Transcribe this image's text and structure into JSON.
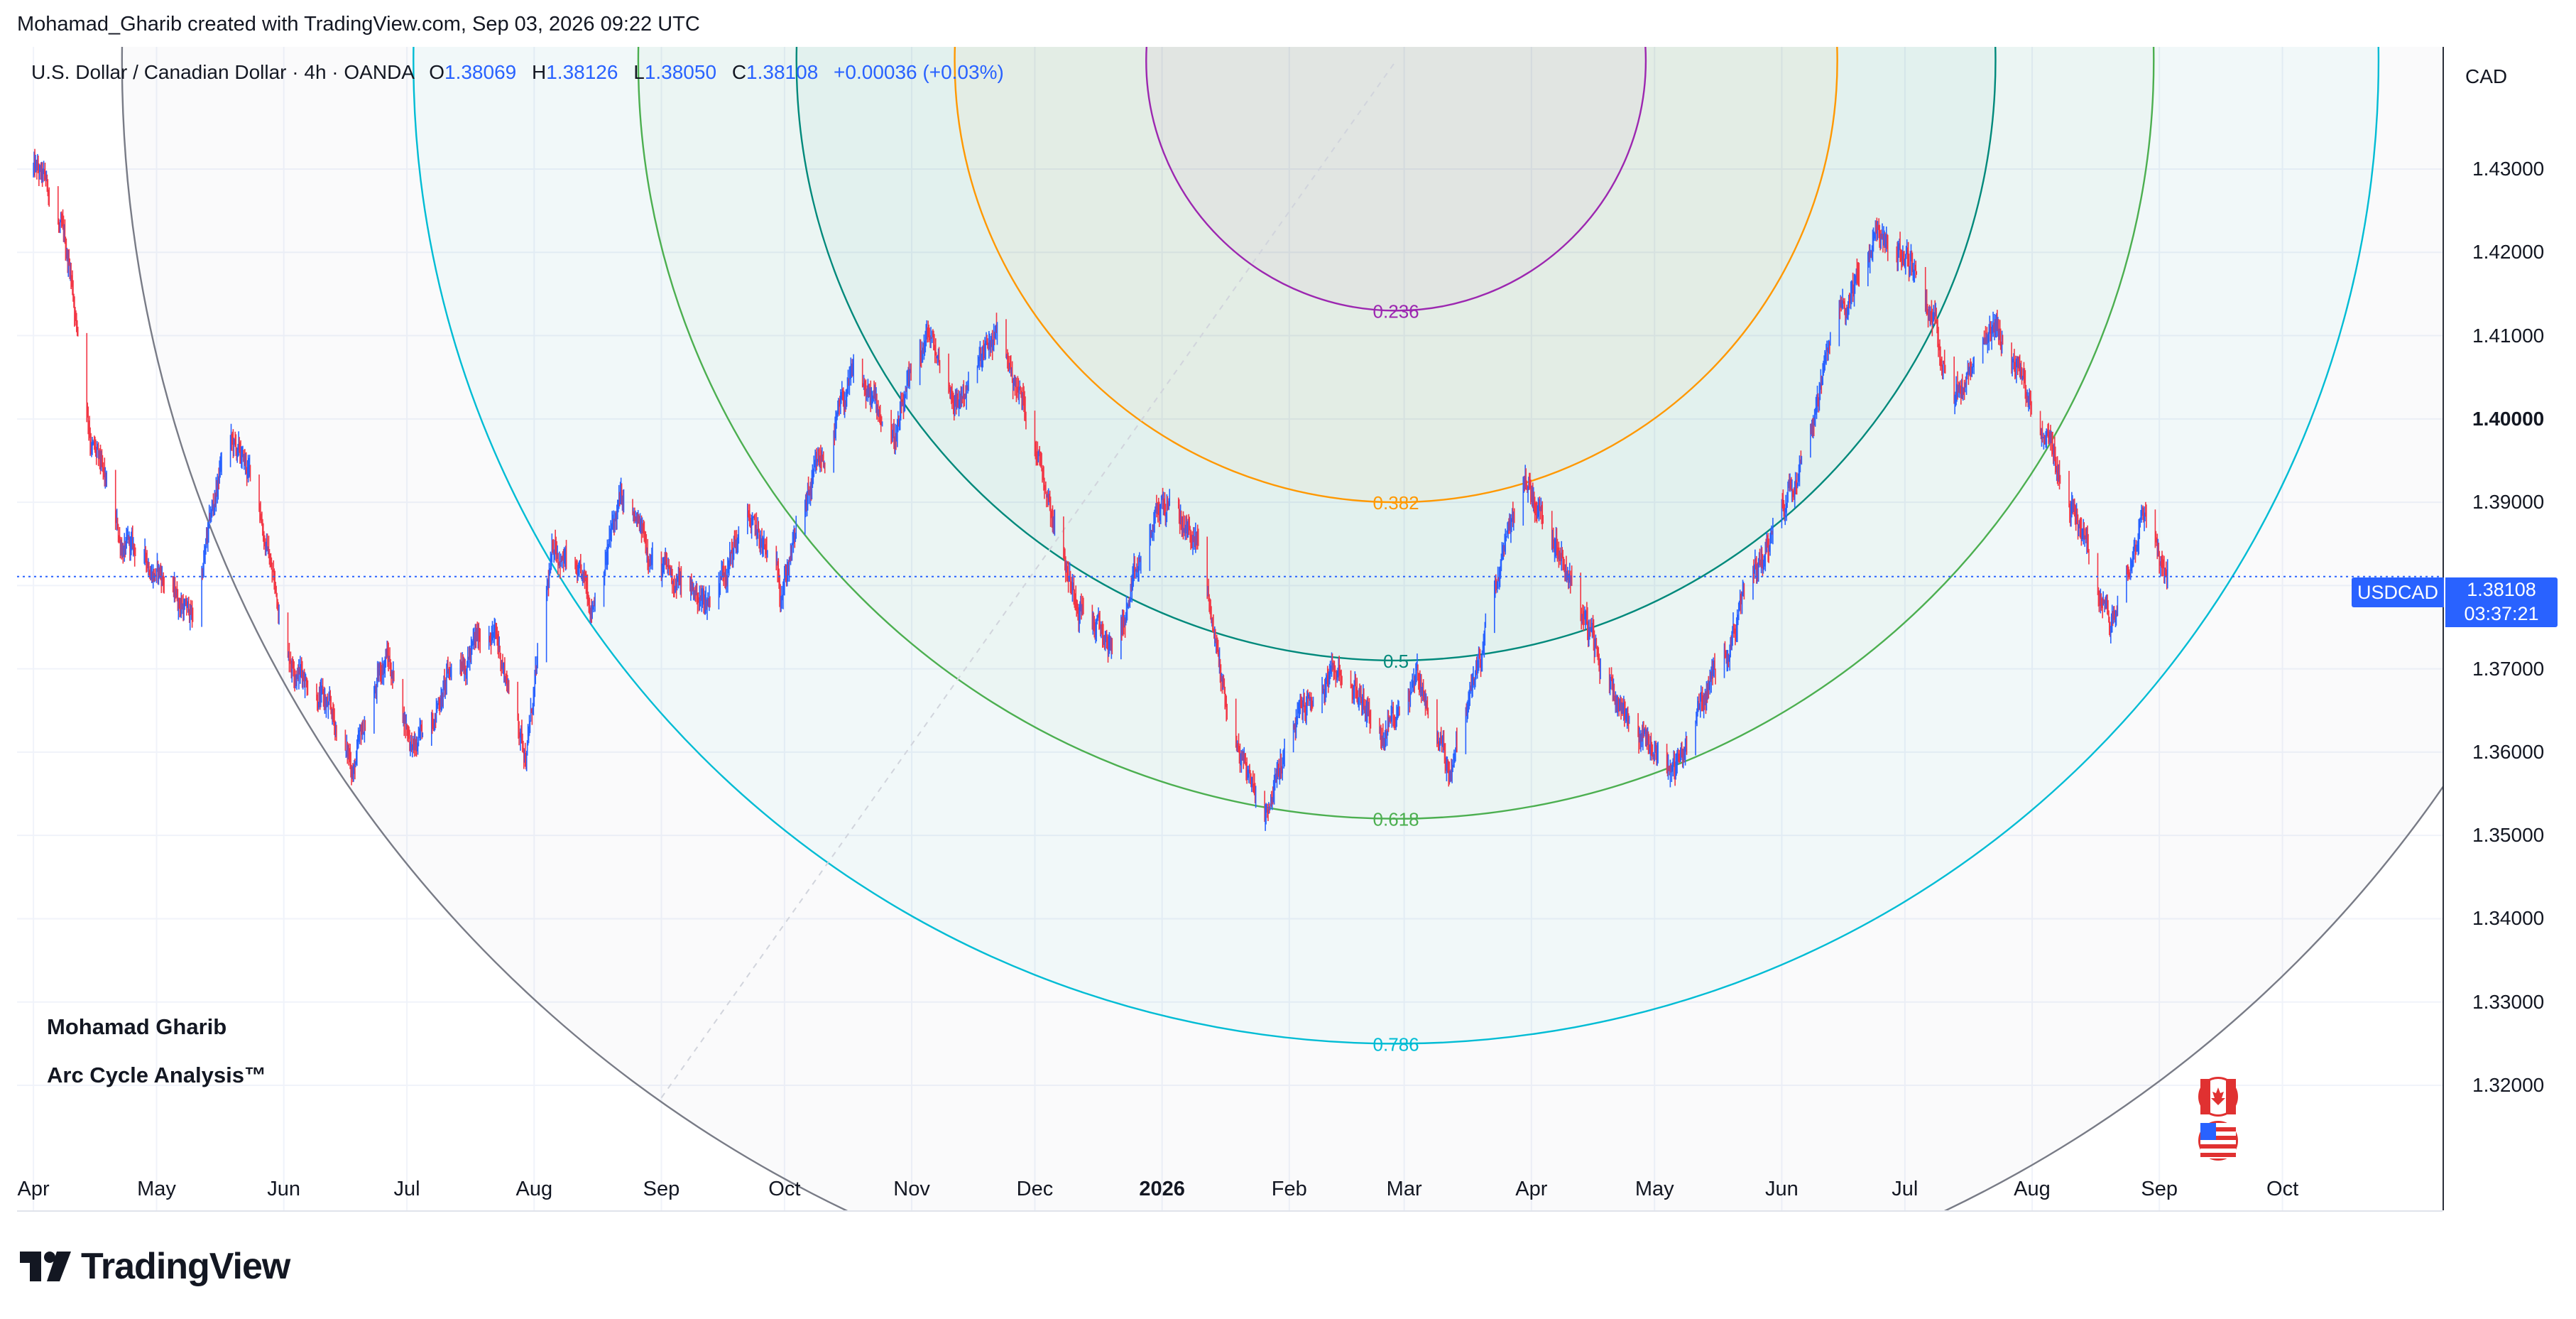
{
  "attribution": "Mohamad_Gharib created with TradingView.com, Sep 03, 2026 09:22 UTC",
  "legend": {
    "symbol": "U.S. Dollar / Canadian Dollar · 4h · OANDA",
    "open_label": "O",
    "open": "1.38069",
    "high_label": "H",
    "high": "1.38126",
    "low_label": "L",
    "low": "1.38050",
    "close_label": "C",
    "close": "1.38108",
    "change": "+0.00036 (+0.03%)"
  },
  "price_axis": {
    "currency": "CAD",
    "ticks": [
      "1.43000",
      "1.42000",
      "1.41000",
      "1.40000",
      "1.39000",
      "1.38000",
      "1.37000",
      "1.36000",
      "1.35000",
      "1.34000",
      "1.33000",
      "1.32000"
    ]
  },
  "time_axis": {
    "ticks": [
      "Apr",
      "May",
      "Jun",
      "Jul",
      "Aug",
      "Sep",
      "Oct",
      "Nov",
      "Dec",
      "2026",
      "Feb",
      "Mar",
      "Apr",
      "May",
      "Jun",
      "Jul",
      "Aug",
      "Sep",
      "Oct"
    ]
  },
  "current_price": {
    "ticker": "USDCAD",
    "price": "1.38108",
    "countdown": "03:37:21"
  },
  "annotations": {
    "author": "Mohamad Gharib",
    "subtitle": "Arc Cycle Analysis™"
  },
  "branding": {
    "logo_icon": "tradingview-logo-icon",
    "logo_text": "TradingView"
  },
  "flags": {
    "top": "canada-flag-icon",
    "bottom": "usa-flag-icon"
  },
  "colors": {
    "up": "#2962ff",
    "down": "#f23645",
    "price_line": "#2962ff"
  },
  "chart_data": {
    "type": "candlestick",
    "title": "U.S. Dollar / Canadian Dollar · 4h · OANDA",
    "symbol": "USDCAD",
    "timeframe": "4h",
    "x_range": [
      "2025-04",
      "2026-10"
    ],
    "ylim": [
      1.312,
      1.436
    ],
    "grid": true,
    "last_close": 1.38108,
    "price_path": [
      {
        "t": "2025-04-01",
        "p": 1.43
      },
      {
        "t": "2025-04-05",
        "p": 1.427
      },
      {
        "t": "2025-04-10",
        "p": 1.418
      },
      {
        "t": "2025-04-15",
        "p": 1.398
      },
      {
        "t": "2025-04-22",
        "p": 1.385
      },
      {
        "t": "2025-05-01",
        "p": 1.382
      },
      {
        "t": "2025-05-10",
        "p": 1.376
      },
      {
        "t": "2025-05-18",
        "p": 1.398
      },
      {
        "t": "2025-05-25",
        "p": 1.392
      },
      {
        "t": "2025-06-02",
        "p": 1.372
      },
      {
        "t": "2025-06-10",
        "p": 1.367
      },
      {
        "t": "2025-06-18",
        "p": 1.358
      },
      {
        "t": "2025-06-26",
        "p": 1.372
      },
      {
        "t": "2025-07-03",
        "p": 1.36
      },
      {
        "t": "2025-07-12",
        "p": 1.37
      },
      {
        "t": "2025-07-22",
        "p": 1.375
      },
      {
        "t": "2025-07-30",
        "p": 1.36
      },
      {
        "t": "2025-08-06",
        "p": 1.385
      },
      {
        "t": "2025-08-15",
        "p": 1.378
      },
      {
        "t": "2025-08-22",
        "p": 1.39
      },
      {
        "t": "2025-09-01",
        "p": 1.382
      },
      {
        "t": "2025-09-12",
        "p": 1.378
      },
      {
        "t": "2025-09-22",
        "p": 1.388
      },
      {
        "t": "2025-09-30",
        "p": 1.38
      },
      {
        "t": "2025-10-08",
        "p": 1.392
      },
      {
        "t": "2025-10-18",
        "p": 1.405
      },
      {
        "t": "2025-10-28",
        "p": 1.398
      },
      {
        "t": "2025-11-05",
        "p": 1.41
      },
      {
        "t": "2025-11-12",
        "p": 1.402
      },
      {
        "t": "2025-11-22",
        "p": 1.41
      },
      {
        "t": "2025-12-01",
        "p": 1.398
      },
      {
        "t": "2025-12-10",
        "p": 1.38
      },
      {
        "t": "2025-12-20",
        "p": 1.372
      },
      {
        "t": "2026-01-01",
        "p": 1.39
      },
      {
        "t": "2026-01-10",
        "p": 1.385
      },
      {
        "t": "2026-01-18",
        "p": 1.362
      },
      {
        "t": "2026-01-26",
        "p": 1.353
      },
      {
        "t": "2026-02-04",
        "p": 1.365
      },
      {
        "t": "2026-02-14",
        "p": 1.37
      },
      {
        "t": "2026-02-24",
        "p": 1.362
      },
      {
        "t": "2026-03-04",
        "p": 1.37
      },
      {
        "t": "2026-03-12",
        "p": 1.358
      },
      {
        "t": "2026-03-20",
        "p": 1.372
      },
      {
        "t": "2026-03-30",
        "p": 1.393
      },
      {
        "t": "2026-04-08",
        "p": 1.385
      },
      {
        "t": "2026-04-18",
        "p": 1.37
      },
      {
        "t": "2026-04-28",
        "p": 1.362
      },
      {
        "t": "2026-05-06",
        "p": 1.358
      },
      {
        "t": "2026-05-16",
        "p": 1.37
      },
      {
        "t": "2026-05-26",
        "p": 1.382
      },
      {
        "t": "2026-06-05",
        "p": 1.395
      },
      {
        "t": "2026-06-15",
        "p": 1.412
      },
      {
        "t": "2026-06-24",
        "p": 1.422
      },
      {
        "t": "2026-07-04",
        "p": 1.418
      },
      {
        "t": "2026-07-14",
        "p": 1.403
      },
      {
        "t": "2026-07-24",
        "p": 1.41
      },
      {
        "t": "2026-08-03",
        "p": 1.4
      },
      {
        "t": "2026-08-12",
        "p": 1.388
      },
      {
        "t": "2026-08-20",
        "p": 1.375
      },
      {
        "t": "2026-08-28",
        "p": 1.39
      },
      {
        "t": "2026-09-03",
        "p": 1.381
      }
    ],
    "fib_arcs": {
      "center": {
        "t": "2026-02-27",
        "p": 1.443
      },
      "anchor": {
        "t": "2025-04-01",
        "p": 1.436
      },
      "levels": [
        {
          "label": "0.236",
          "price_at_center": 1.413,
          "color": "#9c27b0"
        },
        {
          "label": "0.382",
          "price_at_center": 1.39,
          "color": "#ff9800"
        },
        {
          "label": "0.5",
          "price_at_center": 1.371,
          "color": "#00897b"
        },
        {
          "label": "0.618",
          "price_at_center": 1.352,
          "color": "#4caf50"
        },
        {
          "label": "0.786",
          "price_at_center": 1.325,
          "color": "#00bcd4"
        },
        {
          "label": "1",
          "price_at_center": 1.29,
          "color": "#787b86"
        }
      ]
    }
  }
}
